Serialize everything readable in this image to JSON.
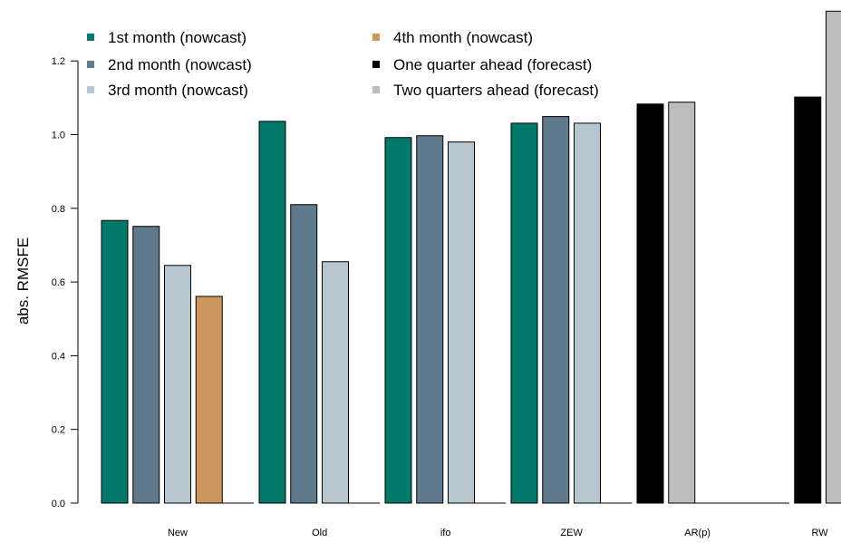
{
  "chart_data": {
    "type": "bar",
    "title": "",
    "xlabel": "",
    "ylabel": "abs. RMSFE",
    "ylim": [
      0,
      1.35
    ],
    "yticks": [
      0.0,
      0.2,
      0.4,
      0.6,
      0.8,
      1.0,
      1.2
    ],
    "ytick_labels": [
      "0.0",
      "0.2",
      "0.4",
      "0.6",
      "0.8",
      "1.0",
      "1.2"
    ],
    "grid": false,
    "legend_position": "top-left, two columns",
    "categories": [
      "New",
      "Old",
      "ifo",
      "ZEW",
      "AR(p)",
      "RW"
    ],
    "series": [
      {
        "name": "1st month (nowcast)",
        "color": "#00796B",
        "values": [
          0.767,
          1.036,
          0.992,
          1.031,
          null,
          null
        ]
      },
      {
        "name": "2nd month (nowcast)",
        "color": "#5F7A8D",
        "values": [
          0.751,
          0.81,
          0.997,
          1.049,
          null,
          null
        ]
      },
      {
        "name": "3rd month (nowcast)",
        "color": "#B8C7CF",
        "values": [
          0.645,
          0.655,
          0.98,
          1.031,
          null,
          null
        ]
      },
      {
        "name": "4th month (nowcast)",
        "color": "#CC975E",
        "values": [
          0.561,
          null,
          null,
          null,
          null,
          null
        ]
      },
      {
        "name": "One quarter ahead (forecast)",
        "color": "#000000",
        "values": [
          null,
          null,
          null,
          null,
          1.083,
          1.102
        ]
      },
      {
        "name": "Two quarters ahead (forecast)",
        "color": "#BDBDBD",
        "values": [
          null,
          null,
          null,
          null,
          1.088,
          1.335
        ]
      }
    ],
    "group_bars": [
      [
        0,
        1,
        2,
        3,
        null
      ],
      [
        0,
        1,
        2,
        null
      ],
      [
        0,
        1,
        2,
        null
      ],
      [
        0,
        1,
        2,
        null
      ],
      [
        4,
        5,
        null,
        null
      ],
      [
        null,
        4,
        5,
        null
      ]
    ]
  }
}
